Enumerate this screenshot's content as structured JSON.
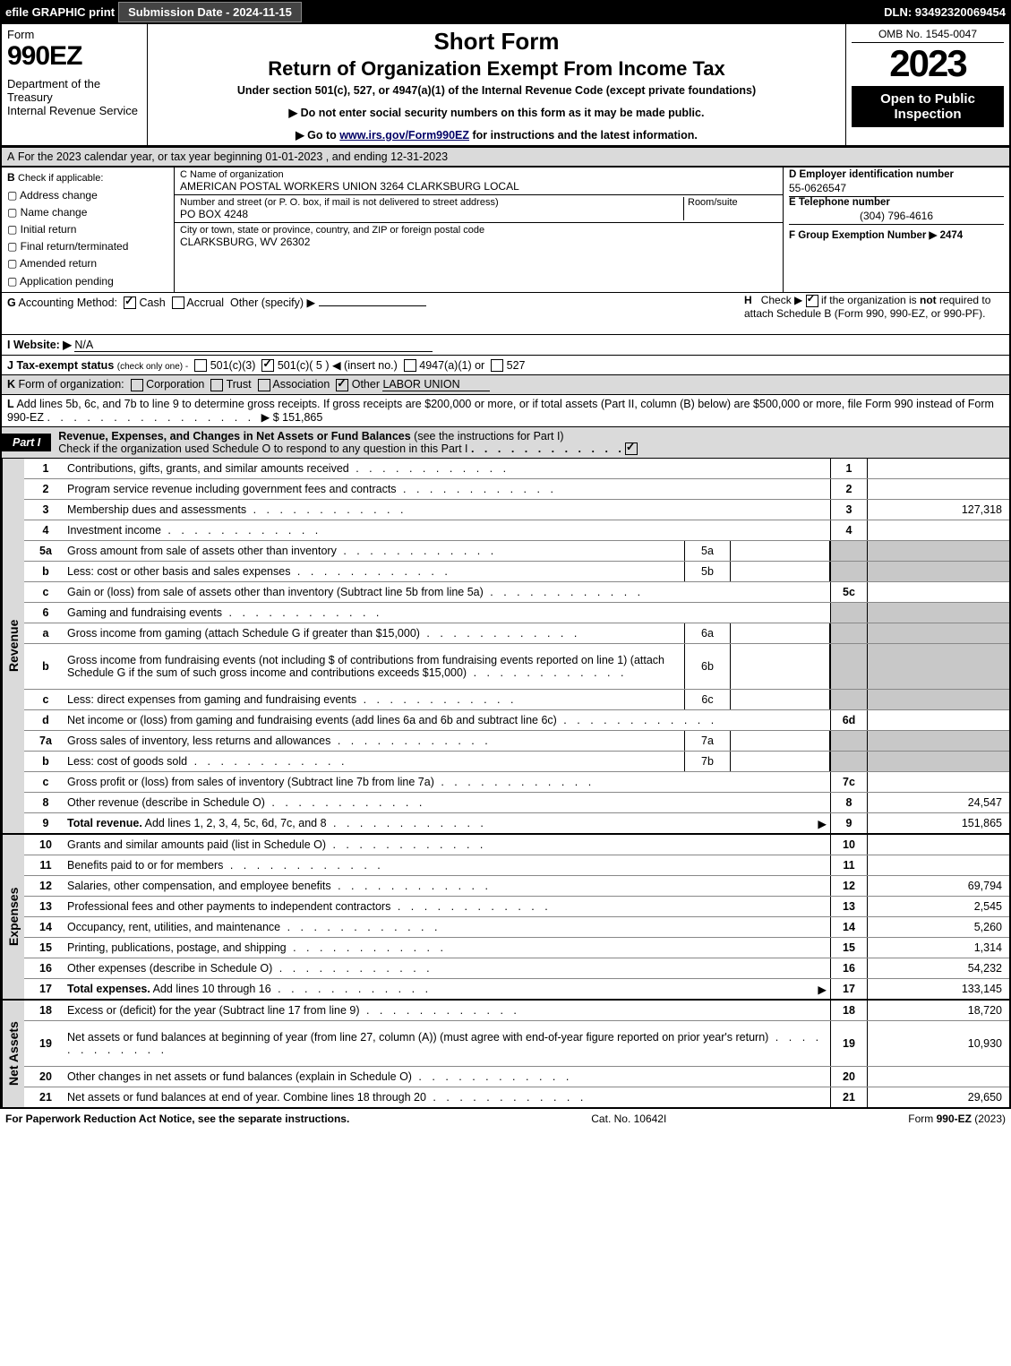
{
  "topbar": {
    "efile": "efile GRAPHIC print",
    "sub_btn": "Submission Date - 2024-11-15",
    "dln": "DLN: 93492320069454"
  },
  "header": {
    "form_word": "Form",
    "form_num": "990EZ",
    "dept": "Department of the Treasury\nInternal Revenue Service",
    "short": "Short Form",
    "title": "Return of Organization Exempt From Income Tax",
    "sub": "Under section 501(c), 527, or 4947(a)(1) of the Internal Revenue Code (except private foundations)",
    "note1": "▶ Do not enter social security numbers on this form as it may be made public.",
    "note2_pre": "▶ Go to ",
    "note2_link": "www.irs.gov/Form990EZ",
    "note2_post": " for instructions and the latest information.",
    "omb": "OMB No. 1545-0047",
    "year": "2023",
    "open": "Open to Public Inspection"
  },
  "lineA": {
    "label": "A",
    "text": "For the 2023 calendar year, or tax year beginning 01-01-2023 , and ending 12-31-2023"
  },
  "boxB": {
    "label": "B",
    "sub": "Check if applicable:",
    "opts": [
      "Address change",
      "Name change",
      "Initial return",
      "Final return/terminated",
      "Amended return",
      "Application pending"
    ]
  },
  "boxC": {
    "name_lbl": "C Name of organization",
    "name": "AMERICAN POSTAL WORKERS UNION 3264 CLARKSBURG LOCAL",
    "addr_lbl": "Number and street (or P. O. box, if mail is not delivered to street address)",
    "addr": "PO BOX 4248",
    "room_lbl": "Room/suite",
    "city_lbl": "City or town, state or province, country, and ZIP or foreign postal code",
    "city": "CLARKSBURG, WV  26302"
  },
  "boxD": {
    "lbl": "D Employer identification number",
    "val": "55-0626547",
    "tel_lbl": "E Telephone number",
    "tel": "(304) 796-4616",
    "grp_lbl": "F Group Exemption Number",
    "grp": "▶ 2474"
  },
  "lineG": {
    "label": "G",
    "text": "Accounting Method:",
    "cash": "Cash",
    "accrual": "Accrual",
    "other": "Other (specify) ▶"
  },
  "lineH": {
    "label": "H",
    "text": "Check ▶ ",
    "rest": " if the organization is ",
    "not": "not",
    "cont": " required to attach Schedule B (Form 990, 990-EZ, or 990-PF)."
  },
  "lineI": {
    "label": "I",
    "text": "Website: ▶",
    "val": "N/A"
  },
  "lineJ": {
    "label": "J",
    "text": "Tax-exempt status",
    "sub": "(check only one) -",
    "o1": "501(c)(3)",
    "o2": "501(c)( 5 ) ◀ (insert no.)",
    "o3": "4947(a)(1) or",
    "o4": "527"
  },
  "lineK": {
    "label": "K",
    "text": "Form of organization:",
    "opts": [
      "Corporation",
      "Trust",
      "Association",
      "Other"
    ],
    "other_val": "LABOR UNION"
  },
  "lineL": {
    "label": "L",
    "text": "Add lines 5b, 6c, and 7b to line 9 to determine gross receipts. If gross receipts are $200,000 or more, or if total assets (Part II, column (B) below) are $500,000 or more, file Form 990 instead of Form 990-EZ",
    "amt": "▶ $ 151,865"
  },
  "part1": {
    "tag": "Part I",
    "title": "Revenue, Expenses, and Changes in Net Assets or Fund Balances",
    "paren": "(see the instructions for Part I)",
    "sub": "Check if the organization used Schedule O to respond to any question in this Part I"
  },
  "sections": {
    "revenue_label": "Revenue",
    "expenses_label": "Expenses",
    "netassets_label": "Net Assets"
  },
  "rows": [
    {
      "n": "1",
      "desc": "Contributions, gifts, grants, and similar amounts received",
      "ln": "1",
      "val": ""
    },
    {
      "n": "2",
      "desc": "Program service revenue including government fees and contracts",
      "ln": "2",
      "val": ""
    },
    {
      "n": "3",
      "desc": "Membership dues and assessments",
      "ln": "3",
      "val": "127,318"
    },
    {
      "n": "4",
      "desc": "Investment income",
      "ln": "4",
      "val": ""
    },
    {
      "n": "5a",
      "desc": "Gross amount from sale of assets other than inventory",
      "mid": "5a",
      "ln": "",
      "val": "",
      "grey": true
    },
    {
      "n": "b",
      "desc": "Less: cost or other basis and sales expenses",
      "mid": "5b",
      "ln": "",
      "val": "",
      "grey": true
    },
    {
      "n": "c",
      "desc": "Gain or (loss) from sale of assets other than inventory (Subtract line 5b from line 5a)",
      "ln": "5c",
      "val": ""
    },
    {
      "n": "6",
      "desc": "Gaming and fundraising events",
      "ln": "",
      "val": "",
      "grey": true,
      "nolncol": true
    },
    {
      "n": "a",
      "desc": "Gross income from gaming (attach Schedule G if greater than $15,000)",
      "mid": "6a",
      "ln": "",
      "val": "",
      "grey": true
    },
    {
      "n": "b",
      "desc": "Gross income from fundraising events (not including $                    of contributions from fundraising events reported on line 1) (attach Schedule G if the sum of such gross income and contributions exceeds $15,000)",
      "mid": "6b",
      "ln": "",
      "val": "",
      "grey": true,
      "tall": true
    },
    {
      "n": "c",
      "desc": "Less: direct expenses from gaming and fundraising events",
      "mid": "6c",
      "ln": "",
      "val": "",
      "grey": true
    },
    {
      "n": "d",
      "desc": "Net income or (loss) from gaming and fundraising events (add lines 6a and 6b and subtract line 6c)",
      "ln": "6d",
      "val": ""
    },
    {
      "n": "7a",
      "desc": "Gross sales of inventory, less returns and allowances",
      "mid": "7a",
      "ln": "",
      "val": "",
      "grey": true
    },
    {
      "n": "b",
      "desc": "Less: cost of goods sold",
      "mid": "7b",
      "ln": "",
      "val": "",
      "grey": true
    },
    {
      "n": "c",
      "desc": "Gross profit or (loss) from sales of inventory (Subtract line 7b from line 7a)",
      "ln": "7c",
      "val": ""
    },
    {
      "n": "8",
      "desc": "Other revenue (describe in Schedule O)",
      "ln": "8",
      "val": "24,547"
    },
    {
      "n": "9",
      "desc": "Total revenue. Add lines 1, 2, 3, 4, 5c, 6d, 7c, and 8",
      "ln": "9",
      "val": "151,865",
      "bold": true,
      "arrow": true
    }
  ],
  "rows_exp": [
    {
      "n": "10",
      "desc": "Grants and similar amounts paid (list in Schedule O)",
      "ln": "10",
      "val": ""
    },
    {
      "n": "11",
      "desc": "Benefits paid to or for members",
      "ln": "11",
      "val": ""
    },
    {
      "n": "12",
      "desc": "Salaries, other compensation, and employee benefits",
      "ln": "12",
      "val": "69,794"
    },
    {
      "n": "13",
      "desc": "Professional fees and other payments to independent contractors",
      "ln": "13",
      "val": "2,545"
    },
    {
      "n": "14",
      "desc": "Occupancy, rent, utilities, and maintenance",
      "ln": "14",
      "val": "5,260"
    },
    {
      "n": "15",
      "desc": "Printing, publications, postage, and shipping",
      "ln": "15",
      "val": "1,314"
    },
    {
      "n": "16",
      "desc": "Other expenses (describe in Schedule O)",
      "ln": "16",
      "val": "54,232"
    },
    {
      "n": "17",
      "desc": "Total expenses. Add lines 10 through 16",
      "ln": "17",
      "val": "133,145",
      "bold": true,
      "arrow": true
    }
  ],
  "rows_na": [
    {
      "n": "18",
      "desc": "Excess or (deficit) for the year (Subtract line 17 from line 9)",
      "ln": "18",
      "val": "18,720"
    },
    {
      "n": "19",
      "desc": "Net assets or fund balances at beginning of year (from line 27, column (A)) (must agree with end-of-year figure reported on prior year's return)",
      "ln": "19",
      "val": "10,930",
      "tall": true
    },
    {
      "n": "20",
      "desc": "Other changes in net assets or fund balances (explain in Schedule O)",
      "ln": "20",
      "val": ""
    },
    {
      "n": "21",
      "desc": "Net assets or fund balances at end of year. Combine lines 18 through 20",
      "ln": "21",
      "val": "29,650"
    }
  ],
  "footer": {
    "left": "For Paperwork Reduction Act Notice, see the separate instructions.",
    "mid": "Cat. No. 10642I",
    "right": "Form 990-EZ (2023)"
  }
}
